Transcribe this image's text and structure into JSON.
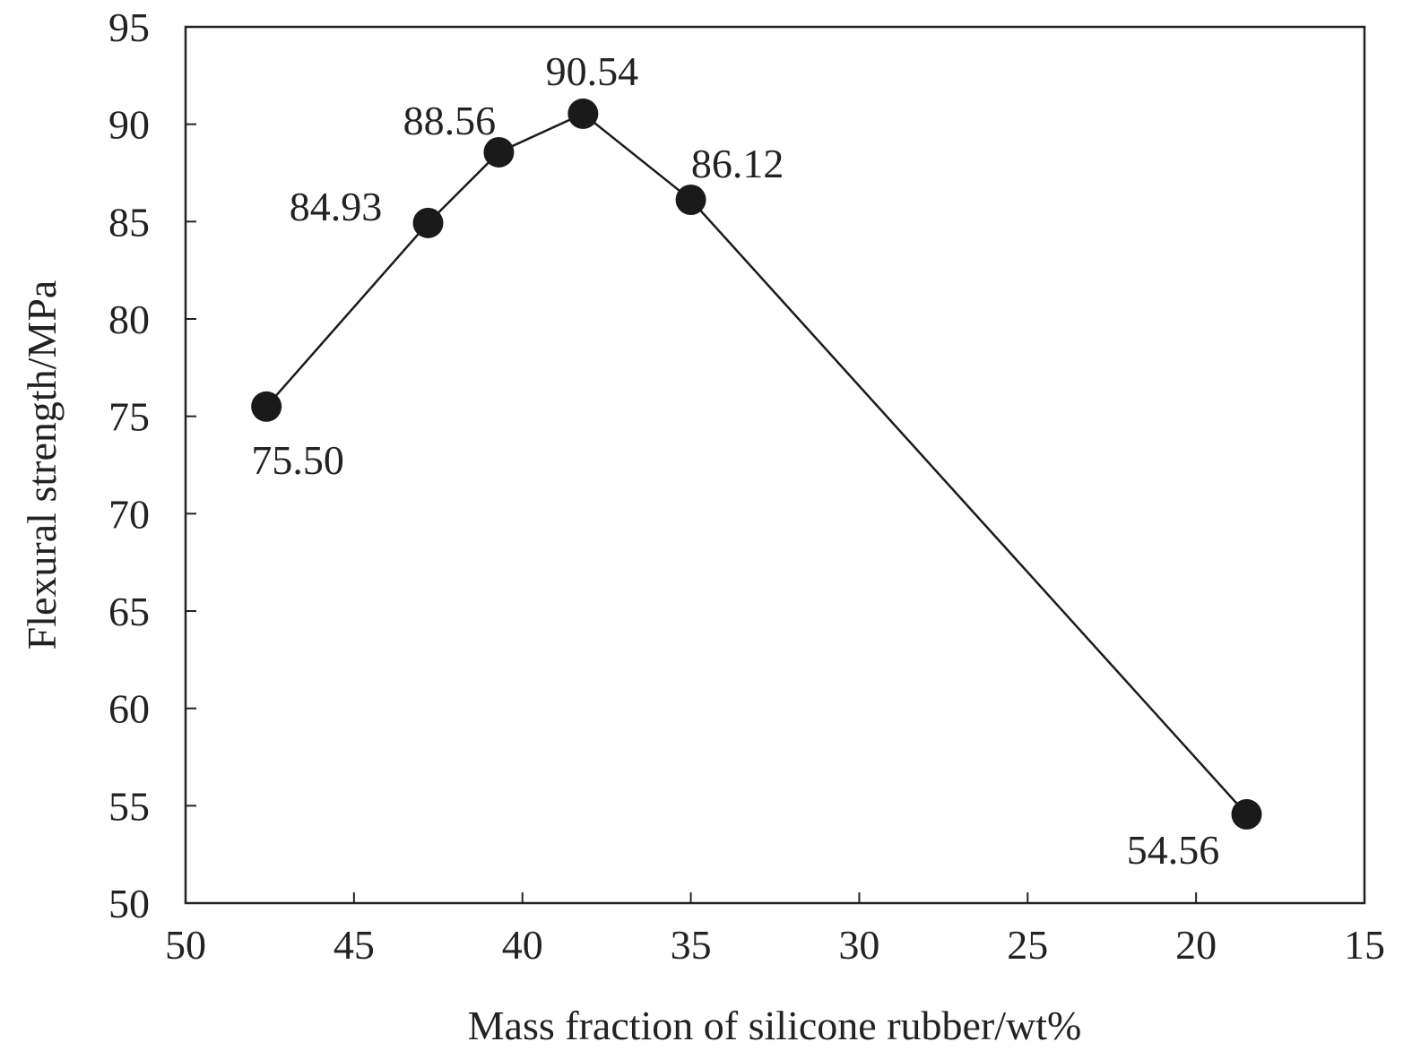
{
  "chart_data": {
    "type": "line",
    "xlabel": "Mass fraction of silicone rubber/wt%",
    "ylabel": "Flexural strength/MPa",
    "xlim": [
      50,
      15
    ],
    "ylim": [
      50,
      95
    ],
    "x_reversed": true,
    "xticks": [
      "50",
      "45",
      "40",
      "35",
      "30",
      "25",
      "20",
      "15"
    ],
    "yticks": [
      "50",
      "55",
      "60",
      "65",
      "70",
      "75",
      "80",
      "85",
      "90",
      "95"
    ],
    "grid": false,
    "marker": "filled-circle",
    "color": "#1a1a1a",
    "series": [
      {
        "x": [
          47.6,
          42.8,
          40.7,
          38.2,
          35.0,
          18.5
        ],
        "y": [
          75.5,
          84.93,
          88.56,
          90.54,
          86.12,
          54.56
        ],
        "labels": [
          "75.50",
          "84.93",
          "88.56",
          "90.54",
          "86.12",
          "54.56"
        ]
      }
    ]
  }
}
